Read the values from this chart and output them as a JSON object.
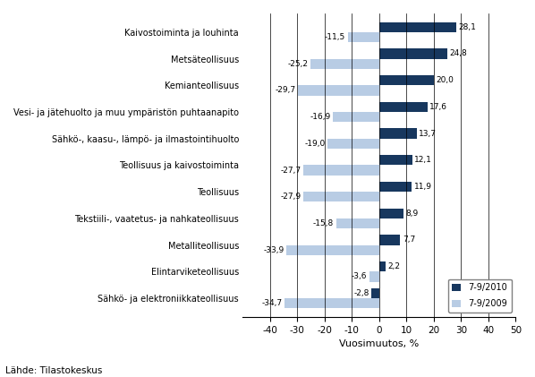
{
  "categories": [
    "Kaivostoiminta ja louhinta",
    "Metsäteollisuus",
    "Kemianteollisuus",
    "Vesi- ja jätehuolto ja muu ympäristön puhtaanapito",
    "Sähkö-, kaasu-, lämpö- ja ilmastointihuolto",
    "Teollisuus ja kaivostoiminta",
    "Teollisuus",
    "Tekstiili-, vaatetus- ja nahkateollisuus",
    "Metalliteollisuus",
    "Elintarviketeollisuus",
    "Sähkö- ja elektroniikkateollisuus"
  ],
  "values_2010": [
    28.1,
    24.8,
    20.0,
    17.6,
    13.7,
    12.1,
    11.9,
    8.9,
    7.7,
    2.2,
    -2.8
  ],
  "values_2009": [
    -11.5,
    -25.2,
    -29.7,
    -16.9,
    -19.0,
    -27.7,
    -27.9,
    -15.8,
    -33.9,
    -3.6,
    -34.7
  ],
  "labels_2010": [
    "28,1",
    "24,8",
    "20,0",
    "17,6",
    "13,7",
    "12,1",
    "11,9",
    "8,9",
    "7,7",
    "2,2",
    "-2,8"
  ],
  "labels_2009": [
    "-11,5",
    "-25,2",
    "-29,7",
    "-16,9",
    "-19,0",
    "-27,7",
    "-27,9",
    "-15,8",
    "-33,9",
    "-3,6",
    "-34,7"
  ],
  "color_2010": "#17375E",
  "color_2009": "#B8CCE4",
  "xlabel": "Vuosimuutos, %",
  "legend_2010": "7-9/2010",
  "legend_2009": "7-9/2009",
  "xlim": [
    -50,
    50
  ],
  "xticks": [
    -40,
    -30,
    -20,
    -10,
    0,
    10,
    20,
    30,
    40,
    50
  ],
  "xtick_labels": [
    "-40",
    "-30",
    "-20",
    "-10",
    "0",
    "10",
    "20",
    "30",
    "40",
    "50"
  ],
  "source": "Lähde: Tilastokeskus",
  "background_color": "#FFFFFF",
  "bar_height": 0.38
}
